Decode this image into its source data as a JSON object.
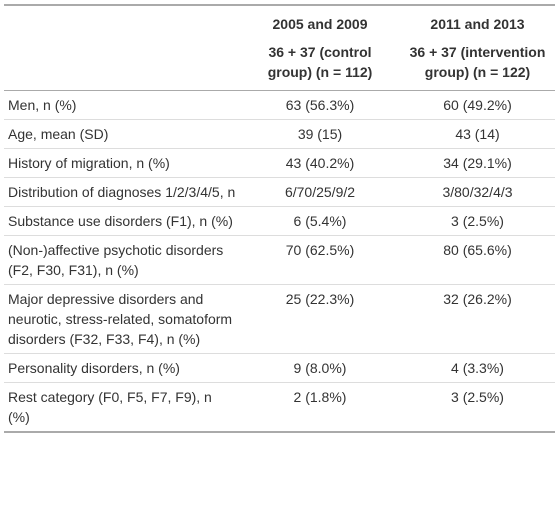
{
  "table": {
    "header": [
      {
        "period": "2005 and 2009",
        "group": "36 + 37 (control group) (n = 112)"
      },
      {
        "period": "2011 and 2013",
        "group": "36 + 37 (intervention group) (n = 122)"
      }
    ],
    "rows": [
      [
        "Men, n (%)",
        "63 (56.3%)",
        "60 (49.2%)"
      ],
      [
        "Age, mean (SD)",
        "39 (15)",
        "43 (14)"
      ],
      [
        "History of migration, n (%)",
        "43 (40.2%)",
        "34 (29.1%)"
      ],
      [
        "Distribution of diagnoses 1/2/3/4/5, n",
        "6/70/25/9/2",
        "3/80/32/4/3"
      ],
      [
        "Substance use disorders (F1), n (%)",
        "6 (5.4%)",
        "3 (2.5%)"
      ],
      [
        "(Non-)affective psychotic disorders (F2, F30, F31), n (%)",
        "70 (62.5%)",
        "80 (65.6%)"
      ],
      [
        "Major depressive disorders and neurotic, stress-related, somatoform disorders (F32, F33, F4), n (%)",
        "25 (22.3%)",
        "32 (26.2%)"
      ],
      [
        "Personality disorders, n (%)",
        "9 (8.0%)",
        "4 (3.3%)"
      ],
      [
        "Rest category (F0, F5, F7, F9), n (%)",
        "2 (1.8%)",
        "3 (2.5%)"
      ]
    ]
  }
}
